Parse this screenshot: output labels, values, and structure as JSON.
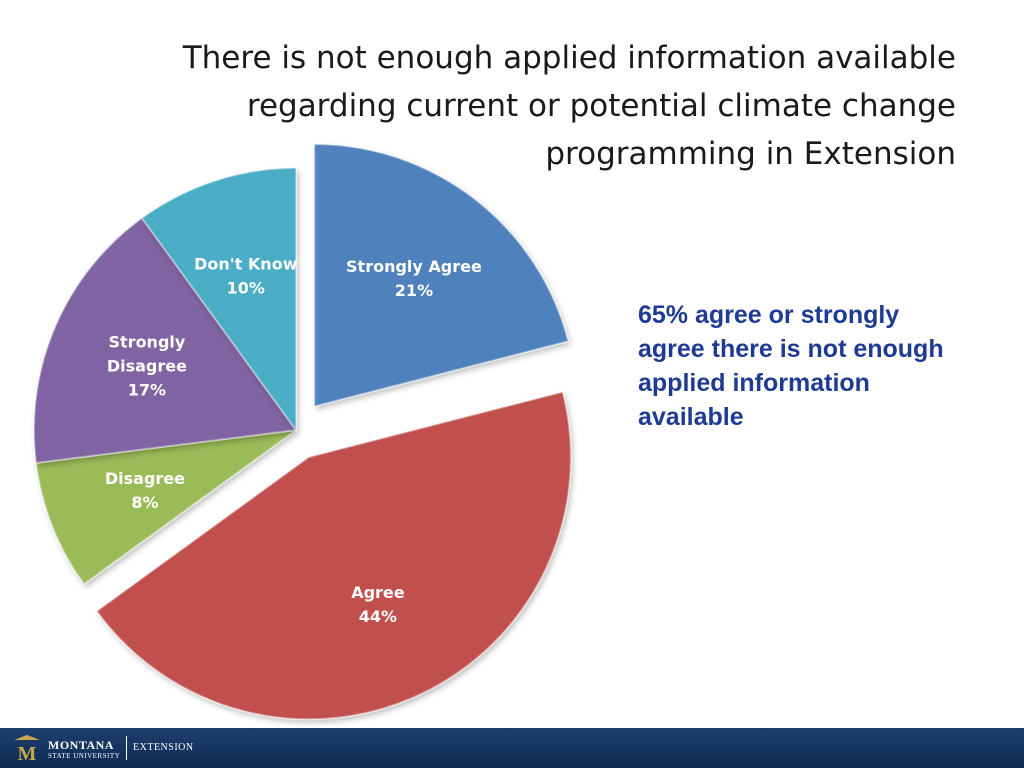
{
  "slide": {
    "title_lines": [
      "There is not enough applied information available",
      "regarding current or potential climate change",
      "programming in Extension"
    ],
    "callout": "65% agree or strongly agree there is not enough applied information available"
  },
  "chart_data": {
    "type": "pie",
    "title": "",
    "start_angle_deg": 0,
    "direction": "clockwise",
    "exploded": [
      "Strongly Agree",
      "Agree"
    ],
    "slices": [
      {
        "label": "Strongly Agree",
        "value": 21,
        "display": "21%",
        "color": "#4f81bd"
      },
      {
        "label": "Agree",
        "value": 44,
        "display": "44%",
        "color": "#c0504d"
      },
      {
        "label": "Disagree",
        "value": 8,
        "display": "8%",
        "color": "#9bbb59"
      },
      {
        "label": "Strongly Disagree",
        "value": 17,
        "display": "17%",
        "color": "#8064a2"
      },
      {
        "label": "Don't Know",
        "value": 10,
        "display": "10%",
        "color": "#4bacc6"
      }
    ]
  },
  "footer": {
    "logo_letter": "M",
    "university": "MONTANA",
    "university_sub": "STATE UNIVERSITY",
    "unit": "EXTENSION"
  }
}
